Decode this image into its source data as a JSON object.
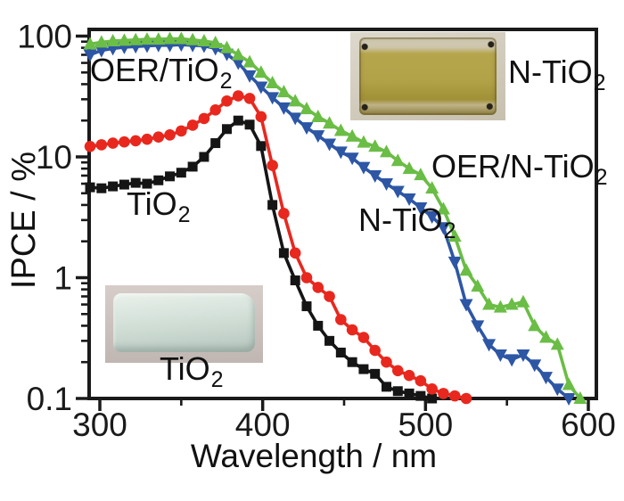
{
  "figure": {
    "background": "#ffffff",
    "y_axis_label": "IPCE / %",
    "x_axis_label": "Wavelength / nm"
  },
  "chart_data": {
    "type": "line",
    "title": "",
    "xlabel": "Wavelength / nm",
    "ylabel": "IPCE / %",
    "x_scale": "linear",
    "y_scale": "log",
    "xlim_nm": [
      293,
      604
    ],
    "ylim_percent": [
      0.1,
      110
    ],
    "grid": false,
    "legend": "inline-annotations",
    "x_axis": {
      "major": [
        {
          "value": 300,
          "label": "300"
        },
        {
          "value": 400,
          "label": "400"
        },
        {
          "value": 500,
          "label": "500"
        },
        {
          "value": 600,
          "label": "600"
        }
      ],
      "minor": [
        350,
        450,
        550
      ]
    },
    "y_axis": {
      "major": [
        {
          "value": 100,
          "label": "100"
        },
        {
          "value": 10,
          "label": "10"
        },
        {
          "value": 1,
          "label": "1"
        },
        {
          "value": 0.1,
          "label": "0.1"
        }
      ],
      "minor_decades": [
        10,
        1,
        0.1
      ]
    },
    "x_nm": [
      294,
      301,
      308,
      315,
      322,
      329,
      336,
      343,
      350,
      357,
      364,
      371,
      378,
      385,
      392,
      399,
      406,
      413,
      420,
      427,
      434,
      441,
      448,
      455,
      462,
      469,
      476,
      483,
      490,
      497,
      504,
      511,
      518,
      525,
      532,
      539,
      546,
      553,
      560,
      567,
      574,
      581,
      588,
      595
    ],
    "series": [
      {
        "name": "TiO2",
        "marker": "square",
        "color": "#151515",
        "values": [
          5.6,
          5.5,
          5.7,
          5.9,
          6.1,
          6.0,
          6.4,
          6.9,
          7.4,
          8.3,
          10,
          13,
          17,
          20,
          18.5,
          12.3,
          4.0,
          1.6,
          0.95,
          0.58,
          0.4,
          0.3,
          0.24,
          0.2,
          0.175,
          0.16,
          0.125,
          0.115,
          0.11,
          0.105,
          0.1,
          null,
          null,
          null,
          null,
          null,
          null,
          null,
          null,
          null,
          null,
          null,
          null,
          null
        ]
      },
      {
        "name": "OER/TiO2",
        "marker": "circle",
        "color": "#e8281e",
        "values": [
          12.2,
          12.6,
          13.0,
          13.3,
          13.6,
          14.0,
          14.6,
          15.2,
          16.4,
          18.3,
          20.8,
          24.5,
          29,
          32,
          30.5,
          21.5,
          8.5,
          3.4,
          1.6,
          1.0,
          0.83,
          0.7,
          0.45,
          0.37,
          0.32,
          0.25,
          0.2,
          0.17,
          0.155,
          0.14,
          0.12,
          0.11,
          0.105,
          0.1,
          null,
          null,
          null,
          null,
          null,
          null,
          null,
          null,
          null,
          null
        ]
      },
      {
        "name": "N-TiO2",
        "marker": "triangle-down",
        "color": "#2d56a5",
        "values": [
          70,
          76,
          79,
          81,
          82,
          83,
          84,
          84,
          85,
          84,
          83,
          79,
          71,
          60,
          47,
          38,
          31,
          25.5,
          21,
          17.5,
          15,
          12.8,
          11,
          9.8,
          8.2,
          7.0,
          6.0,
          5.2,
          4.5,
          3.8,
          3.2,
          2.6,
          1.35,
          0.6,
          0.4,
          0.28,
          0.23,
          0.21,
          0.23,
          0.19,
          0.15,
          0.12,
          0.1,
          null
        ]
      },
      {
        "name": "OER/N-TiO2",
        "marker": "triangle-up",
        "color": "#6abd45",
        "values": [
          86,
          89,
          91,
          92,
          93,
          94,
          94,
          95,
          95,
          93,
          91,
          88,
          80,
          70,
          61,
          50,
          41,
          34.5,
          29,
          25,
          21.5,
          19,
          16.5,
          14.8,
          13.2,
          12.2,
          11,
          9.3,
          8.0,
          7.1,
          5.5,
          3.7,
          2.2,
          1.15,
          0.85,
          0.6,
          0.57,
          0.6,
          0.63,
          0.4,
          0.32,
          0.28,
          0.13,
          0.1
        ]
      }
    ]
  },
  "annotations": {
    "oer_tio2": {
      "main": "OER/TiO",
      "sub": "2"
    },
    "tio2_curve": {
      "main": "TiO",
      "sub": "2"
    },
    "n_tio2_sample": {
      "main": "N-TiO",
      "sub": "2"
    },
    "oer_n_tio2": {
      "main": "OER/N-TiO",
      "sub": "2"
    },
    "n_tio2_curve": {
      "main": "N-TiO",
      "sub": "2"
    },
    "tio2_sample": {
      "main": "TiO",
      "sub": "2"
    }
  },
  "photos": {
    "n_tio2": {
      "sample_color": "#b2a248",
      "background_color": "#d2cbba"
    },
    "tio2": {
      "sample_color": "#cedcd4",
      "background_color": "#cbc1bd"
    }
  }
}
